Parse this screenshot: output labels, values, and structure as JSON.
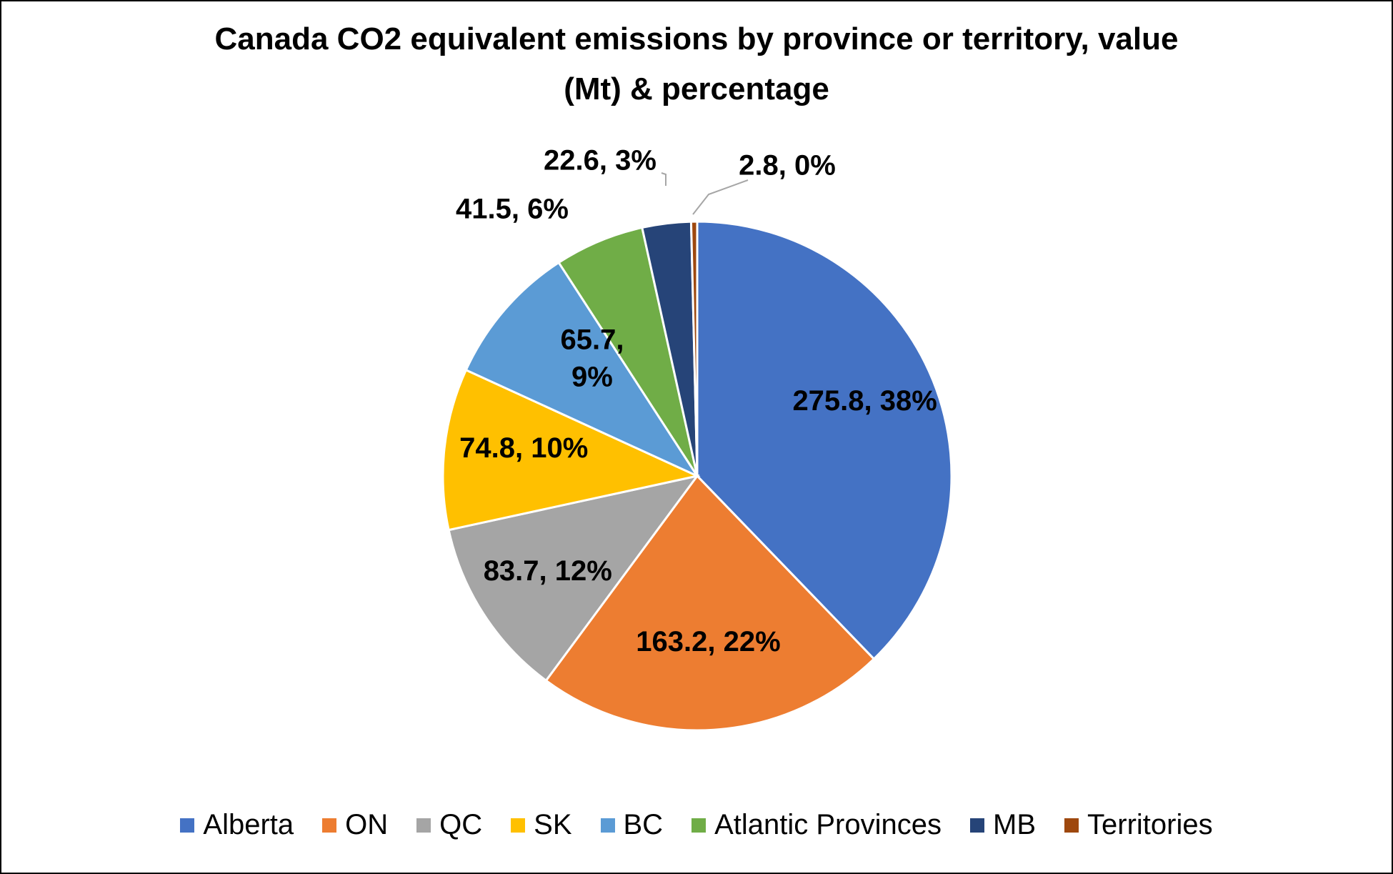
{
  "chart_data": {
    "type": "pie",
    "title_lines": [
      "Canada CO2 equivalent emissions by province or territory, value",
      "(Mt) & percentage"
    ],
    "legend_position": "bottom",
    "slices": [
      {
        "name": "Alberta",
        "value": 275.8,
        "label": "275.8, 38%",
        "color": "#4472C4"
      },
      {
        "name": "ON",
        "value": 163.2,
        "label": "163.2, 22%",
        "color": "#ED7D31"
      },
      {
        "name": "QC",
        "value": 83.7,
        "label": "83.7, 12%",
        "color": "#A5A5A5"
      },
      {
        "name": "SK",
        "value": 74.8,
        "label": "74.8, 10%",
        "color": "#FFC000"
      },
      {
        "name": "BC",
        "value": 65.7,
        "label": "65.7, 9%",
        "color": "#5B9BD5"
      },
      {
        "name": "Atlantic Provinces",
        "value": 41.5,
        "label": "41.5, 6%",
        "color": "#70AD47"
      },
      {
        "name": "MB",
        "value": 22.6,
        "label": "22.6, 3%",
        "color": "#264478"
      },
      {
        "name": "Territories",
        "value": 2.8,
        "label": "2.8, 0%",
        "color": "#9E480E"
      }
    ]
  }
}
